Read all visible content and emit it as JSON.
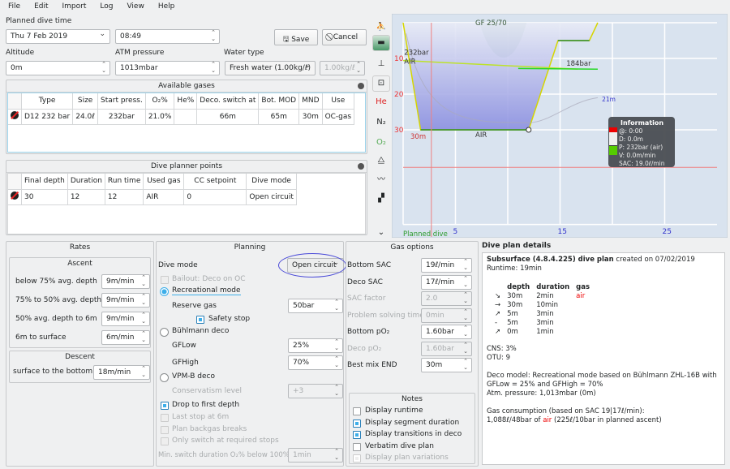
{
  "menu": [
    "File",
    "Edit",
    "Import",
    "Log",
    "View",
    "Help"
  ],
  "header": {
    "planned_label": "Planned dive time",
    "date": "Thu 7 Feb 2019",
    "time": "08:49",
    "save": "Save",
    "cancel": "Cancel",
    "altitude_label": "Altitude",
    "altitude": "0m",
    "atm_label": "ATM pressure",
    "atm": "1013mbar",
    "water_label": "Water type",
    "water": "Fresh water (1.00kg/ℓ)",
    "density": "1.00kg/ℓ"
  },
  "gases": {
    "title": "Available gases",
    "columns": [
      "Type",
      "Size",
      "Start press.",
      "O₂%",
      "He%",
      "Deco. switch at",
      "Bot. MOD",
      "MND",
      "Use"
    ],
    "rows": [
      [
        "D12 232 bar",
        "24.0ℓ",
        "232bar",
        "21.0%",
        "",
        "66m",
        "65m",
        "30m",
        "OC-gas"
      ]
    ]
  },
  "points": {
    "title": "Dive planner points",
    "columns": [
      "Final depth",
      "Duration",
      "Run time",
      "Used gas",
      "CC setpoint",
      "Dive mode"
    ],
    "rows": [
      [
        "30",
        "12",
        "12",
        "AIR",
        "0",
        "Open circuit"
      ]
    ]
  },
  "toolbar_icons": [
    "ceiling-icon",
    "tissue-heatmap-icon",
    "calculated-ceiling-icon",
    "deco-icon",
    "he-icon",
    "n2-icon",
    "o2-icon",
    "ruler-icon",
    "profile-line-icon",
    "color-icon",
    "more-chevron-icon"
  ],
  "toolbar_text": {
    "he": "He",
    "n2": "N₂",
    "o2": "O₂"
  },
  "chart_data": {
    "type": "line",
    "x": [
      0,
      1.67,
      12,
      14.8,
      17.8,
      18.6
    ],
    "y": [
      0,
      30,
      30,
      5,
      5,
      0
    ],
    "xticks": [
      "5",
      "15",
      "25"
    ],
    "xtick_values": [
      5,
      15,
      25
    ],
    "yticks": [
      "10",
      "20",
      "30"
    ],
    "ytick_values": [
      10,
      20,
      30
    ],
    "xlim": [
      0,
      30
    ],
    "ylim": [
      0,
      56
    ],
    "grid": true,
    "labels": {
      "gf": "GF 25/70",
      "start_pressure": "232bar",
      "end_pressure": "184bar",
      "gas_start": "AIR",
      "gas_bottom": "AIR",
      "max_depth": "30m",
      "mod": "21m",
      "footer": "Planned dive"
    },
    "pressure": {
      "x": [
        0,
        16.7
      ],
      "y": [
        10.6,
        13
      ]
    },
    "info": {
      "title": "Information",
      "lines": [
        "@: 0:00",
        "D: 0.0m",
        "P: 232bar (air)",
        "V: 0.0m/min",
        "SAC: 19.0ℓ/min"
      ]
    },
    "colors": {
      "profile_fill": "#8b8fe0",
      "profile_line": "#d6d600",
      "pressure": "#26d926",
      "grid": "#ffffff",
      "bg": "#d9e3ef",
      "ceiling": "#7aa89a"
    }
  },
  "rates": {
    "title": "Rates",
    "ascent": "Ascent",
    "rows": [
      [
        "below 75% avg. depth",
        "9m/min"
      ],
      [
        "75% to 50% avg. depth",
        "9m/min"
      ],
      [
        "50% avg. depth to 6m",
        "9m/min"
      ],
      [
        "6m to surface",
        "6m/min"
      ]
    ],
    "descent": "Descent",
    "descent_label": "surface to the bottom",
    "descent_value": "18m/min"
  },
  "planning": {
    "title": "Planning",
    "dive_mode_label": "Dive mode",
    "dive_mode": "Open circuit",
    "bailout": "Bailout: Deco on OC",
    "recreational": "Recreational mode",
    "reserve_label": "Reserve gas",
    "reserve": "50bar",
    "safety": "Safety stop",
    "buhlmann": "Bühlmann deco",
    "gflow_label": "GFLow",
    "gflow": "25%",
    "gfhigh_label": "GFHigh",
    "gfhigh": "70%",
    "vpm": "VPM-B deco",
    "conserv_label": "Conservatism level",
    "conserv": "+3",
    "drop": "Drop to first depth",
    "last_stop": "Last stop at 6m",
    "backgas": "Plan backgas breaks",
    "only_switch": "Only switch at required stops",
    "min_switch_label": "Min. switch duration O₂% below 100%",
    "min_switch": "1min"
  },
  "gas_options": {
    "title": "Gas options",
    "rows": [
      [
        "Bottom SAC",
        "19ℓ/min",
        true
      ],
      [
        "Deco SAC",
        "17ℓ/min",
        true
      ],
      [
        "SAC factor",
        "2.0",
        false
      ],
      [
        "Problem solving time",
        "0min",
        false
      ],
      [
        "Bottom pO₂",
        "1.60bar",
        true
      ],
      [
        "Deco pO₂",
        "1.60bar",
        false
      ],
      [
        "Best mix END",
        "30m",
        true
      ]
    ]
  },
  "notes": {
    "title": "Notes",
    "items": [
      [
        "Display runtime",
        false,
        true
      ],
      [
        "Display segment duration",
        true,
        true
      ],
      [
        "Display transitions in deco",
        true,
        true
      ],
      [
        "Verbatim dive plan",
        false,
        true
      ],
      [
        "Display plan variations",
        true,
        false
      ]
    ]
  },
  "details": {
    "title": "Dive plan details",
    "heading": "Subsurface (4.8.4.225) dive plan",
    "created": " created on 07/02/2019",
    "runtime": "Runtime: 19min",
    "cols": [
      "depth",
      "duration",
      "gas"
    ],
    "rows": [
      [
        "↘",
        "30m",
        "2min",
        "air"
      ],
      [
        "→",
        "30m",
        "10min",
        ""
      ],
      [
        "↗",
        "5m",
        "3min",
        ""
      ],
      [
        "-",
        "5m",
        "3min",
        ""
      ],
      [
        "↗",
        "0m",
        "1min",
        ""
      ]
    ],
    "cns": "CNS: 3%",
    "otu": "OTU: 9",
    "deco1": "Deco model: Recreational mode based on Bühlmann ZHL-16B with",
    "deco2": "GFLow = 25% and GFHigh = 70%",
    "atm": "Atm. pressure: 1,013mbar (0m)",
    "gas1": "Gas consumption (based on SAC 19|17ℓ/min):",
    "gas2a": "1,088ℓ/48bar of ",
    "gas2b": "air",
    "gas2c": " (225ℓ/10bar in planned ascent)"
  }
}
